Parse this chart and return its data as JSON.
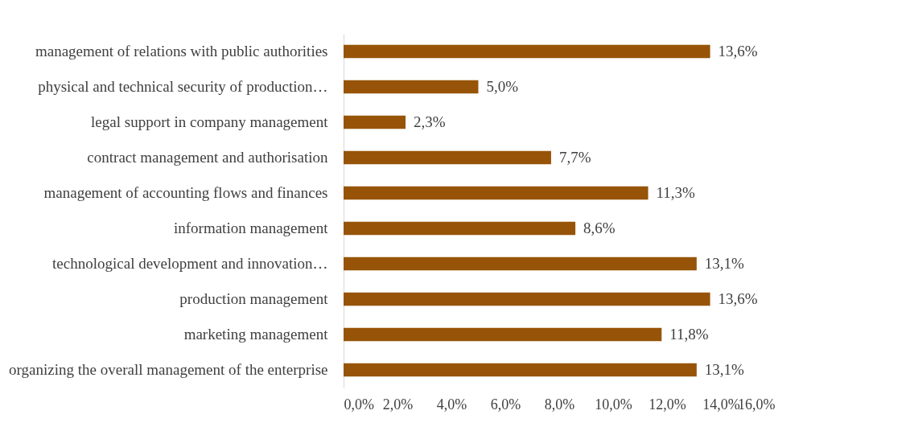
{
  "chart_data": {
    "type": "bar",
    "orientation": "horizontal",
    "categories": [
      "management of relations with public authorities",
      "physical and technical security of production…",
      "legal support in company management",
      "contract management and authorisation",
      "management of accounting flows and finances",
      "information management",
      "technological development and innovation…",
      "production management",
      "marketing management",
      "organizing the overall management of the enterprise"
    ],
    "values": [
      13.6,
      5.0,
      2.3,
      7.7,
      11.3,
      8.6,
      13.1,
      13.6,
      11.8,
      13.1
    ],
    "value_labels": [
      "13,6%",
      "5,0%",
      "2,3%",
      "7,7%",
      "11,3%",
      "8,6%",
      "13,1%",
      "13,6%",
      "11,8%",
      "13,1%"
    ],
    "color": "#975408",
    "xlim": [
      0,
      16
    ],
    "xticks": [
      {
        "value": 0,
        "label": "0,0%"
      },
      {
        "value": 2,
        "label": "2,0%"
      },
      {
        "value": 4,
        "label": "4,0%"
      },
      {
        "value": 6,
        "label": "6,0%"
      },
      {
        "value": 8,
        "label": "8,0%"
      },
      {
        "value": 10,
        "label": "10,0%"
      },
      {
        "value": 12,
        "label": "12,0%"
      },
      {
        "value": 14,
        "label": "14,0%"
      },
      {
        "value": 16,
        "label": "16,0%"
      }
    ],
    "grid": false
  }
}
